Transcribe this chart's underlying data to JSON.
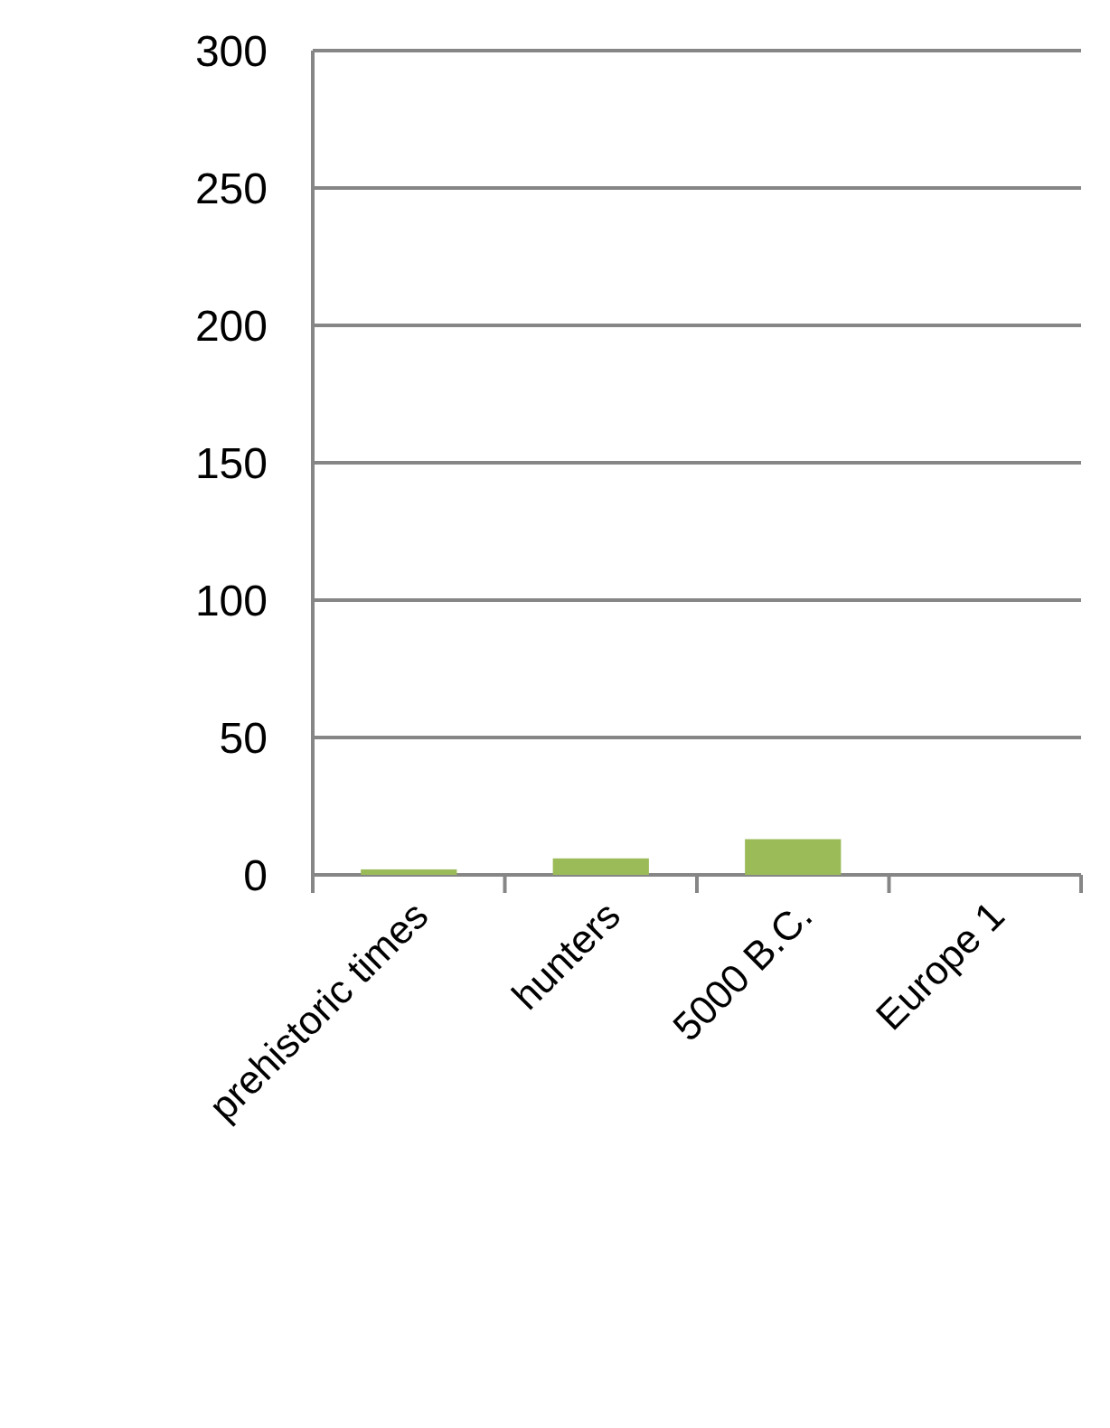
{
  "chart_data": {
    "type": "bar",
    "categories": [
      "prehistoric times",
      "hunters",
      "5000 B.C.",
      "Europe 1"
    ],
    "values": [
      2,
      6,
      13,
      null
    ],
    "color": "#9bbb59",
    "ylim": [
      0,
      300
    ],
    "yticks": [
      0,
      50,
      100,
      150,
      200,
      250,
      300
    ],
    "grid": "y"
  }
}
